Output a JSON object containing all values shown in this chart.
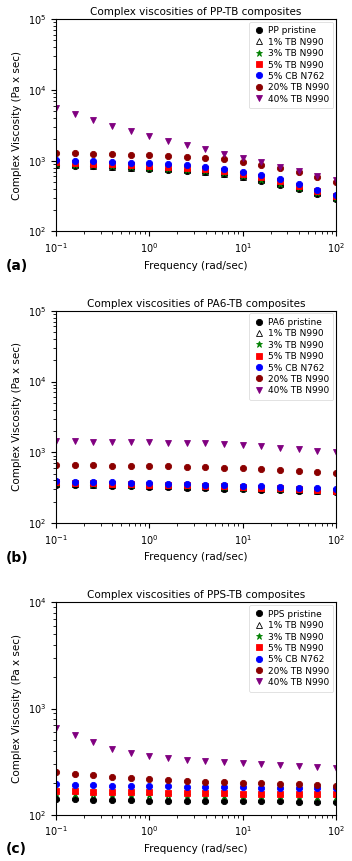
{
  "panels": [
    {
      "title": "Complex viscosities of PP-TB composites",
      "ylabel": "Complex Viscosity (Pa x sec)",
      "xlabel": "Frequency (rad/sec)",
      "ylim": [
        100,
        100000
      ],
      "label": "(a)",
      "pristine_label": "PP pristine",
      "series": [
        {
          "label": "PP pristine",
          "marker": "o",
          "color": "#000000",
          "mfc": "#000000",
          "mec": "#000000",
          "x": [
            0.1,
            0.158,
            0.251,
            0.398,
            0.631,
            1.0,
            1.585,
            2.512,
            3.981,
            6.31,
            10.0,
            15.85,
            25.12,
            39.81,
            63.1,
            100.0
          ],
          "y": [
            870,
            850,
            830,
            810,
            790,
            770,
            750,
            720,
            690,
            640,
            580,
            520,
            460,
            400,
            340,
            290
          ]
        },
        {
          "label": "1% TB N990",
          "marker": "^",
          "color": "#000000",
          "mfc": "none",
          "mec": "#000000",
          "x": [
            0.1,
            0.158,
            0.251,
            0.398,
            0.631,
            1.0,
            1.585,
            2.512,
            3.981,
            6.31,
            10.0,
            15.85,
            25.12,
            39.81,
            63.1,
            100.0
          ],
          "y": [
            880,
            860,
            840,
            820,
            800,
            780,
            760,
            730,
            700,
            650,
            590,
            530,
            465,
            405,
            345,
            295
          ]
        },
        {
          "label": "3% TB N990",
          "marker": "*",
          "color": "#008000",
          "mfc": "#008000",
          "mec": "#008000",
          "x": [
            0.1,
            0.158,
            0.251,
            0.398,
            0.631,
            1.0,
            1.585,
            2.512,
            3.981,
            6.31,
            10.0,
            15.85,
            25.12,
            39.81,
            63.1,
            100.0
          ],
          "y": [
            900,
            880,
            860,
            840,
            820,
            800,
            775,
            745,
            710,
            660,
            600,
            540,
            475,
            415,
            352,
            300
          ]
        },
        {
          "label": "5% TB N990",
          "marker": "s",
          "color": "#ff0000",
          "mfc": "#ff0000",
          "mec": "#ff0000",
          "x": [
            0.1,
            0.158,
            0.251,
            0.398,
            0.631,
            1.0,
            1.585,
            2.512,
            3.981,
            6.31,
            10.0,
            15.85,
            25.12,
            39.81,
            63.1,
            100.0
          ],
          "y": [
            950,
            930,
            910,
            890,
            870,
            850,
            825,
            795,
            760,
            710,
            650,
            590,
            520,
            445,
            375,
            320
          ]
        },
        {
          "label": "5% CB N762",
          "marker": "o",
          "color": "#0000ff",
          "mfc": "#0000ff",
          "mec": "#0000ff",
          "x": [
            0.1,
            0.158,
            0.251,
            0.398,
            0.631,
            1.0,
            1.585,
            2.512,
            3.981,
            6.31,
            10.0,
            15.85,
            25.12,
            39.81,
            63.1,
            100.0
          ],
          "y": [
            1020,
            1000,
            980,
            960,
            940,
            920,
            895,
            860,
            820,
            770,
            700,
            630,
            555,
            470,
            390,
            330
          ]
        },
        {
          "label": "20% TB N990",
          "marker": "o",
          "color": "#8b0000",
          "mfc": "#8b0000",
          "mec": "#8b0000",
          "x": [
            0.1,
            0.158,
            0.251,
            0.398,
            0.631,
            1.0,
            1.585,
            2.512,
            3.981,
            6.31,
            10.0,
            15.85,
            25.12,
            39.81,
            63.1,
            100.0
          ],
          "y": [
            1300,
            1280,
            1260,
            1240,
            1220,
            1200,
            1175,
            1140,
            1100,
            1040,
            960,
            880,
            790,
            690,
            590,
            500
          ]
        },
        {
          "label": "40% TB N990",
          "marker": "v",
          "color": "#800080",
          "mfc": "#800080",
          "mec": "#800080",
          "x": [
            0.1,
            0.158,
            0.251,
            0.398,
            0.631,
            1.0,
            1.585,
            2.512,
            3.981,
            6.31,
            10.0,
            15.85,
            25.12,
            39.81,
            63.1,
            100.0
          ],
          "y": [
            5500,
            4500,
            3700,
            3100,
            2600,
            2200,
            1900,
            1650,
            1450,
            1250,
            1100,
            950,
            820,
            710,
            610,
            530
          ]
        }
      ]
    },
    {
      "title": "Complex viscosities of PA6-TB composites",
      "ylabel": "Complex Viscosity (Pa x sec)",
      "xlabel": "Frequency (rad/sec)",
      "ylim": [
        100,
        100000
      ],
      "label": "(b)",
      "pristine_label": "PA6 pristine",
      "series": [
        {
          "label": "PA6 pristine",
          "marker": "o",
          "color": "#000000",
          "mfc": "#000000",
          "mec": "#000000",
          "x": [
            0.1,
            0.158,
            0.251,
            0.398,
            0.631,
            1.0,
            1.585,
            2.512,
            3.981,
            6.31,
            10.0,
            15.85,
            25.12,
            39.81,
            63.1,
            100.0
          ],
          "y": [
            350,
            345,
            340,
            335,
            330,
            325,
            320,
            315,
            310,
            305,
            300,
            295,
            290,
            285,
            280,
            275
          ]
        },
        {
          "label": "1% TB N990",
          "marker": "^",
          "color": "#000000",
          "mfc": "none",
          "mec": "#000000",
          "x": [
            0.1,
            0.158,
            0.251,
            0.398,
            0.631,
            1.0,
            1.585,
            2.512,
            3.981,
            6.31,
            10.0,
            15.85,
            25.12,
            39.81,
            63.1,
            100.0
          ],
          "y": [
            360,
            355,
            350,
            345,
            340,
            335,
            330,
            325,
            320,
            315,
            310,
            305,
            300,
            295,
            288,
            280
          ]
        },
        {
          "label": "3% TB N990",
          "marker": "*",
          "color": "#008000",
          "mfc": "#008000",
          "mec": "#008000",
          "x": [
            0.1,
            0.158,
            0.251,
            0.398,
            0.631,
            1.0,
            1.585,
            2.512,
            3.981,
            6.31,
            10.0,
            15.85,
            25.12,
            39.81,
            63.1,
            100.0
          ],
          "y": [
            370,
            365,
            360,
            355,
            350,
            345,
            340,
            335,
            330,
            325,
            318,
            312,
            305,
            299,
            292,
            285
          ]
        },
        {
          "label": "5% TB N990",
          "marker": "s",
          "color": "#ff0000",
          "mfc": "#ff0000",
          "mec": "#ff0000",
          "x": [
            0.1,
            0.158,
            0.251,
            0.398,
            0.631,
            1.0,
            1.585,
            2.512,
            3.981,
            6.31,
            10.0,
            15.85,
            25.12,
            39.81,
            63.1,
            100.0
          ],
          "y": [
            375,
            370,
            365,
            360,
            355,
            350,
            345,
            340,
            335,
            330,
            325,
            318,
            310,
            303,
            295,
            287
          ]
        },
        {
          "label": "5% CB N762",
          "marker": "o",
          "color": "#0000ff",
          "mfc": "#0000ff",
          "mec": "#0000ff",
          "x": [
            0.1,
            0.158,
            0.251,
            0.398,
            0.631,
            1.0,
            1.585,
            2.512,
            3.981,
            6.31,
            10.0,
            15.85,
            25.12,
            39.81,
            63.1,
            100.0
          ],
          "y": [
            390,
            385,
            380,
            375,
            370,
            365,
            360,
            355,
            350,
            344,
            338,
            332,
            325,
            318,
            310,
            302
          ]
        },
        {
          "label": "20% TB N990",
          "marker": "o",
          "color": "#8b0000",
          "mfc": "#8b0000",
          "mec": "#8b0000",
          "x": [
            0.1,
            0.158,
            0.251,
            0.398,
            0.631,
            1.0,
            1.585,
            2.512,
            3.981,
            6.31,
            10.0,
            15.85,
            25.12,
            39.81,
            63.1,
            100.0
          ],
          "y": [
            670,
            660,
            660,
            650,
            645,
            640,
            635,
            625,
            615,
            605,
            595,
            580,
            565,
            545,
            525,
            505
          ]
        },
        {
          "label": "40% TB N990",
          "marker": "v",
          "color": "#800080",
          "mfc": "#800080",
          "mec": "#800080",
          "x": [
            0.1,
            0.158,
            0.251,
            0.398,
            0.631,
            1.0,
            1.585,
            2.512,
            3.981,
            6.31,
            10.0,
            15.85,
            25.12,
            39.81,
            63.1,
            100.0
          ],
          "y": [
            1450,
            1430,
            1420,
            1420,
            1400,
            1390,
            1375,
            1360,
            1340,
            1300,
            1260,
            1210,
            1160,
            1110,
            1060,
            1010
          ]
        }
      ]
    },
    {
      "title": "Complex viscosities of PPS-TB composites",
      "ylabel": "Complex Viscosity (Pa x sec)",
      "xlabel": "Frequency (rad/sec)",
      "ylim": [
        100,
        10000
      ],
      "label": "(c)",
      "pristine_label": "PPS pristine",
      "series": [
        {
          "label": "PPS pristine",
          "marker": "o",
          "color": "#000000",
          "mfc": "#000000",
          "mec": "#000000",
          "x": [
            0.1,
            0.158,
            0.251,
            0.398,
            0.631,
            1.0,
            1.585,
            2.512,
            3.981,
            6.31,
            10.0,
            15.85,
            25.12,
            39.81,
            63.1,
            100.0
          ],
          "y": [
            140,
            140,
            138,
            138,
            137,
            136,
            136,
            135,
            135,
            135,
            134,
            134,
            134,
            133,
            133,
            132
          ]
        },
        {
          "label": "1% TB N990",
          "marker": "^",
          "color": "#000000",
          "mfc": "none",
          "mec": "#000000",
          "x": [
            0.1,
            0.158,
            0.251,
            0.398,
            0.631,
            1.0,
            1.585,
            2.512,
            3.981,
            6.31,
            10.0,
            15.85,
            25.12,
            39.81,
            63.1,
            100.0
          ],
          "y": [
            148,
            147,
            146,
            145,
            144,
            143,
            143,
            142,
            142,
            141,
            141,
            140,
            140,
            139,
            139,
            138
          ]
        },
        {
          "label": "3% TB N990",
          "marker": "*",
          "color": "#008000",
          "mfc": "#008000",
          "mec": "#008000",
          "x": [
            0.1,
            0.158,
            0.251,
            0.398,
            0.631,
            1.0,
            1.585,
            2.512,
            3.981,
            6.31,
            10.0,
            15.85,
            25.12,
            39.81,
            63.1,
            100.0
          ],
          "y": [
            160,
            158,
            157,
            156,
            155,
            154,
            153,
            152,
            152,
            151,
            150,
            150,
            149,
            149,
            148,
            148
          ]
        },
        {
          "label": "5% TB N990",
          "marker": "s",
          "color": "#ff0000",
          "mfc": "#ff0000",
          "mec": "#ff0000",
          "x": [
            0.1,
            0.158,
            0.251,
            0.398,
            0.631,
            1.0,
            1.585,
            2.512,
            3.981,
            6.31,
            10.0,
            15.85,
            25.12,
            39.81,
            63.1,
            100.0
          ],
          "y": [
            168,
            166,
            165,
            164,
            163,
            162,
            161,
            160,
            160,
            159,
            158,
            158,
            157,
            157,
            156,
            155
          ]
        },
        {
          "label": "5% CB N762",
          "marker": "o",
          "color": "#0000ff",
          "mfc": "#0000ff",
          "mec": "#0000ff",
          "x": [
            0.1,
            0.158,
            0.251,
            0.398,
            0.631,
            1.0,
            1.585,
            2.512,
            3.981,
            6.31,
            10.0,
            15.85,
            25.12,
            39.81,
            63.1,
            100.0
          ],
          "y": [
            195,
            192,
            190,
            188,
            187,
            186,
            185,
            184,
            183,
            182,
            181,
            180,
            180,
            179,
            179,
            178
          ]
        },
        {
          "label": "20% TB N990",
          "marker": "o",
          "color": "#8b0000",
          "mfc": "#8b0000",
          "mec": "#8b0000",
          "x": [
            0.1,
            0.158,
            0.251,
            0.398,
            0.631,
            1.0,
            1.585,
            2.512,
            3.981,
            6.31,
            10.0,
            15.85,
            25.12,
            39.81,
            63.1,
            100.0
          ],
          "y": [
            250,
            240,
            235,
            225,
            220,
            215,
            210,
            208,
            205,
            203,
            200,
            198,
            196,
            193,
            190,
            188
          ]
        },
        {
          "label": "40% TB N990",
          "marker": "v",
          "color": "#800080",
          "mfc": "#800080",
          "mec": "#800080",
          "x": [
            0.1,
            0.158,
            0.251,
            0.398,
            0.631,
            1.0,
            1.585,
            2.512,
            3.981,
            6.31,
            10.0,
            15.85,
            25.12,
            39.81,
            63.1,
            100.0
          ],
          "y": [
            650,
            560,
            480,
            420,
            380,
            355,
            340,
            330,
            320,
            312,
            305,
            298,
            292,
            286,
            280,
            275
          ]
        }
      ]
    }
  ],
  "background_color": "#ffffff",
  "markersize": 4.5,
  "fontsize_title": 7.5,
  "fontsize_label": 7.5,
  "fontsize_tick": 7,
  "fontsize_legend": 6.5
}
